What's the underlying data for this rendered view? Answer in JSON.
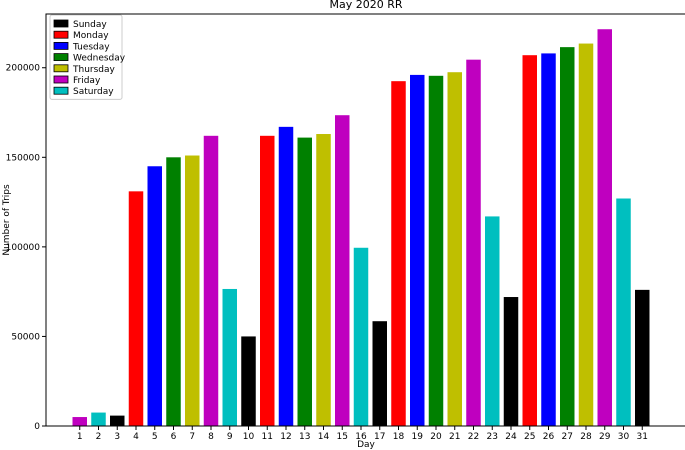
{
  "chart_data": {
    "type": "bar",
    "title": "May 2020 RR",
    "xlabel": "Day",
    "ylabel": "Number of Trips",
    "ylim": [
      0,
      230000
    ],
    "yticks": [
      0,
      50000,
      100000,
      150000,
      200000
    ],
    "ytick_labels": [
      "0",
      "50000",
      "100000",
      "150000",
      "200000"
    ],
    "grid": false,
    "legend_position": "top-left",
    "categories": [
      "1",
      "2",
      "3",
      "4",
      "5",
      "6",
      "7",
      "8",
      "9",
      "10",
      "11",
      "12",
      "13",
      "14",
      "15",
      "16",
      "17",
      "18",
      "19",
      "20",
      "21",
      "22",
      "23",
      "24",
      "25",
      "26",
      "27",
      "28",
      "29",
      "30",
      "31"
    ],
    "values": [
      5000,
      7500,
      5800,
      131000,
      145000,
      150000,
      151000,
      162000,
      76500,
      50000,
      162000,
      167000,
      161000,
      163000,
      173500,
      99500,
      58500,
      192500,
      196000,
      195500,
      197500,
      204500,
      117000,
      72000,
      207000,
      208000,
      211500,
      213500,
      221500,
      127000,
      76000
    ],
    "weekdays": [
      "Friday",
      "Saturday",
      "Sunday",
      "Monday",
      "Tuesday",
      "Wednesday",
      "Thursday",
      "Friday",
      "Saturday",
      "Sunday",
      "Monday",
      "Tuesday",
      "Wednesday",
      "Thursday",
      "Friday",
      "Saturday",
      "Sunday",
      "Monday",
      "Tuesday",
      "Wednesday",
      "Thursday",
      "Friday",
      "Saturday",
      "Sunday",
      "Monday",
      "Tuesday",
      "Wednesday",
      "Thursday",
      "Friday",
      "Saturday",
      "Sunday"
    ],
    "legend": [
      {
        "name": "Sunday",
        "color": "#000000"
      },
      {
        "name": "Monday",
        "color": "#ff0000"
      },
      {
        "name": "Tuesday",
        "color": "#0000ff"
      },
      {
        "name": "Wednesday",
        "color": "#008000"
      },
      {
        "name": "Thursday",
        "color": "#bfbf00"
      },
      {
        "name": "Friday",
        "color": "#bf00bf"
      },
      {
        "name": "Saturday",
        "color": "#00bfbf"
      }
    ]
  }
}
